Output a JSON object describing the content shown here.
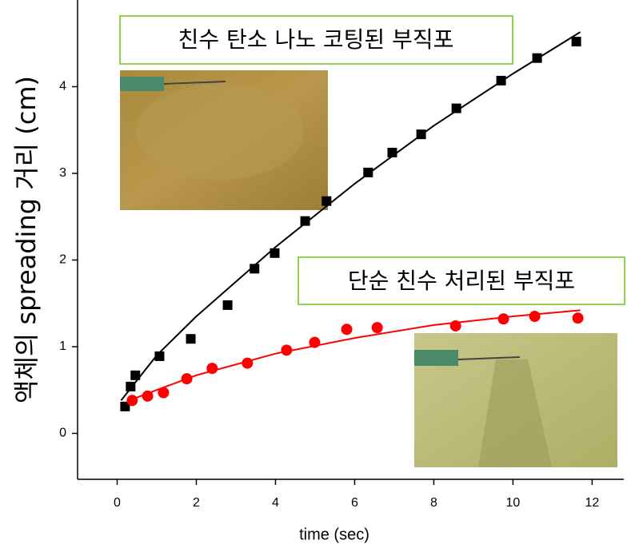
{
  "chart_data": {
    "type": "scatter",
    "x_label": "time (sec)",
    "y_label": "액체의 spreading 거리 (cm)",
    "xlim": [
      -1,
      12.8
    ],
    "ylim": [
      -0.53,
      5.0
    ],
    "xticks": [
      0,
      2,
      4,
      6,
      8,
      10,
      12
    ],
    "yticks": [
      0,
      1,
      2,
      3,
      4
    ],
    "annotations": [
      "친수 탄소 나노 코팅된 부직포",
      "단순 친수 처리된 부직포"
    ],
    "series": [
      {
        "color": "#000000",
        "marker": "square",
        "x": [
          0.2,
          0.34,
          0.46,
          1.07,
          1.86,
          2.79,
          3.47,
          3.98,
          4.75,
          5.29,
          6.34,
          6.95,
          7.68,
          8.57,
          9.7,
          10.61,
          11.6
        ],
        "values": [
          0.31,
          0.54,
          0.67,
          0.89,
          1.09,
          1.48,
          1.9,
          2.08,
          2.45,
          2.68,
          3.01,
          3.24,
          3.45,
          3.75,
          4.07,
          4.33,
          4.52
        ]
      },
      {
        "color": "#ff0000",
        "marker": "circle",
        "x": [
          0.38,
          0.77,
          1.17,
          1.76,
          2.4,
          3.29,
          4.28,
          4.99,
          5.8,
          6.57,
          8.55,
          9.76,
          10.55,
          11.64
        ],
        "values": [
          0.38,
          0.43,
          0.47,
          0.63,
          0.75,
          0.81,
          0.96,
          1.05,
          1.2,
          1.22,
          1.24,
          1.32,
          1.35,
          1.33
        ]
      }
    ],
    "fits": [
      {
        "color": "#000000",
        "x": [
          0.1,
          1,
          2,
          4,
          6,
          8,
          10,
          11.7
        ],
        "values": [
          0.38,
          0.9,
          1.35,
          2.15,
          2.88,
          3.55,
          4.15,
          4.63
        ]
      },
      {
        "color": "#ff0000",
        "x": [
          0.3,
          1,
          2,
          4,
          6,
          8,
          10,
          11.7
        ],
        "values": [
          0.38,
          0.5,
          0.67,
          0.92,
          1.1,
          1.25,
          1.35,
          1.42
        ]
      }
    ]
  }
}
